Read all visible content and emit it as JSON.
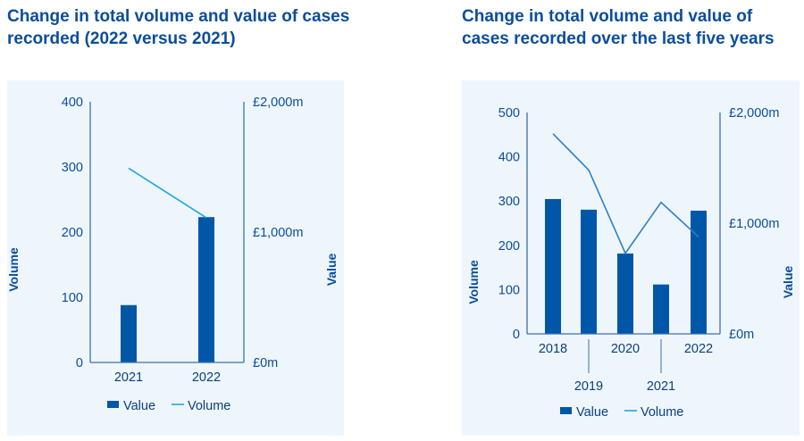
{
  "chart_data": [
    {
      "type": "bar+line",
      "title": "Change in total volume and value of cases recorded (2022 versus 2021)",
      "categories": [
        "2021",
        "2022"
      ],
      "ylabel_left": "Volume",
      "ylabel_right": "Value",
      "ylim_left": [
        0,
        400
      ],
      "ylim_right": [
        0,
        2000
      ],
      "yticks_left": [
        "0",
        "100",
        "200",
        "300",
        "400"
      ],
      "yticks_right": [
        "£0m",
        "£1,000m",
        "£2,000m"
      ],
      "grid": false,
      "legend_position": "bottom",
      "series": [
        {
          "name": "Value",
          "type": "bar",
          "axis": "right",
          "unit": "£m",
          "color": "#0057a8",
          "values": [
            440,
            1115
          ]
        },
        {
          "name": "Volume",
          "type": "line",
          "axis": "left",
          "color": "#1ea7e0",
          "values": [
            298,
            222
          ]
        }
      ]
    },
    {
      "type": "bar+line",
      "title": "Change in total volume and value of cases recorded over the last five years",
      "categories": [
        "2018",
        "2019",
        "2020",
        "2021",
        "2022"
      ],
      "ylabel_left": "Volume",
      "ylabel_right": "Value",
      "ylim_left": [
        0,
        500
      ],
      "ylim_right": [
        0,
        2000
      ],
      "yticks_left": [
        "0",
        "100",
        "200",
        "300",
        "400",
        "500"
      ],
      "yticks_right": [
        "£0m",
        "£1,000m",
        "£2,000m"
      ],
      "grid": false,
      "legend_position": "bottom",
      "series": [
        {
          "name": "Value",
          "type": "bar",
          "axis": "right",
          "unit": "£m",
          "color": "#0057a8",
          "values": [
            1218,
            1122,
            726,
            446,
            1113
          ]
        },
        {
          "name": "Volume",
          "type": "line",
          "axis": "left",
          "color": "#2b80c8",
          "values": [
            452,
            370,
            182,
            297,
            219
          ]
        }
      ]
    }
  ],
  "axis_color": "#3a6fb0",
  "text_color": "#0a4d9c"
}
